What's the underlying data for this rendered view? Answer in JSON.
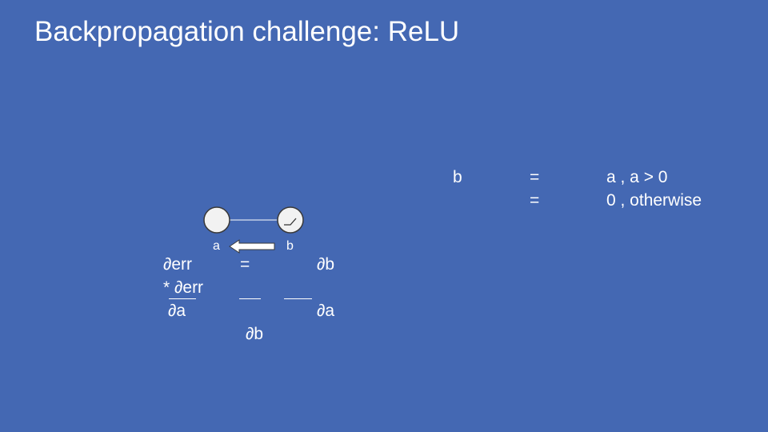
{
  "slide": {
    "title": "Backpropagation challenge: ReLU"
  },
  "diagram": {
    "node_a_label": "a",
    "node_b_label": "b"
  },
  "equation": {
    "row1_lhs": "∂err",
    "row1_eq": "=",
    "row1_rhs": "∂b",
    "row2_text": "* ∂err",
    "row3_left": "∂a",
    "row3_right": "∂a",
    "row4_center": "∂b"
  },
  "relu_def": {
    "var": "b",
    "eq1": "=",
    "case1": "a ,  a > 0",
    "eq2": "=",
    "case2": "0 ,  otherwise"
  },
  "colors": {
    "background": "#4468b3",
    "foreground": "#ffffff",
    "node_fill": "#f2f2f2",
    "node_stroke": "#3a3a3a"
  },
  "icons": {
    "backprop_arrow": "left-arrow-icon",
    "relu_glyph": "relu-activation-icon"
  }
}
